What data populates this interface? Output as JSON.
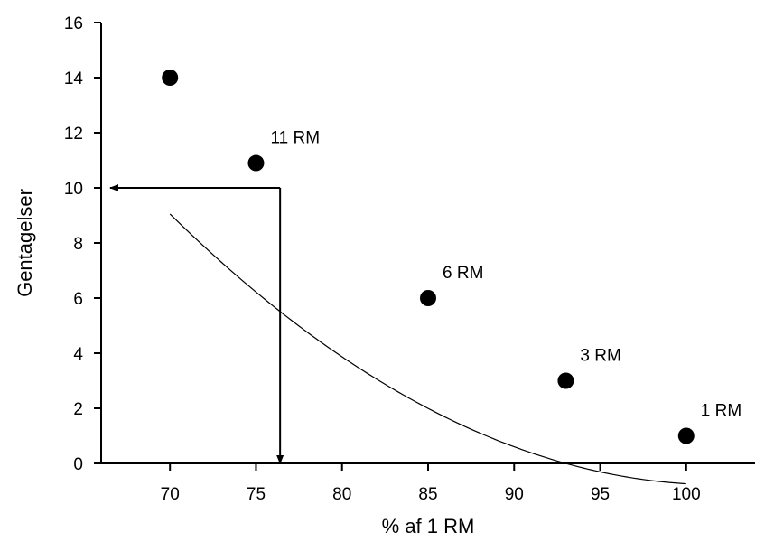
{
  "chart_data": {
    "type": "scatter",
    "title": "",
    "xlabel": "% af 1 RM",
    "ylabel": "Gentagelser",
    "xlim": [
      66,
      104
    ],
    "ylim": [
      0,
      16
    ],
    "xticks": [
      70,
      75,
      80,
      85,
      90,
      95,
      100
    ],
    "yticks": [
      0,
      2,
      4,
      6,
      8,
      10,
      12,
      14,
      16
    ],
    "grid": false,
    "legend": "none",
    "points": [
      {
        "x": 70,
        "y": 14,
        "label": ""
      },
      {
        "x": 75,
        "y": 10.9,
        "label": "11 RM"
      },
      {
        "x": 85,
        "y": 6,
        "label": "6 RM"
      },
      {
        "x": 93,
        "y": 3,
        "label": "3 RM"
      },
      {
        "x": 100,
        "y": 1,
        "label": "1 RM"
      }
    ],
    "fit_curve": {
      "type": "quadratic",
      "coefficients": [
        99.1,
        -1.9584,
        0.0096
      ],
      "x_range": [
        70,
        100
      ]
    },
    "annotation": {
      "x": 76.4,
      "y": 10,
      "description_arrows": [
        "horizontal-to-y-axis",
        "vertical-to-x-axis"
      ]
    },
    "colors": {
      "marker": "#000000",
      "line": "#000000"
    }
  }
}
